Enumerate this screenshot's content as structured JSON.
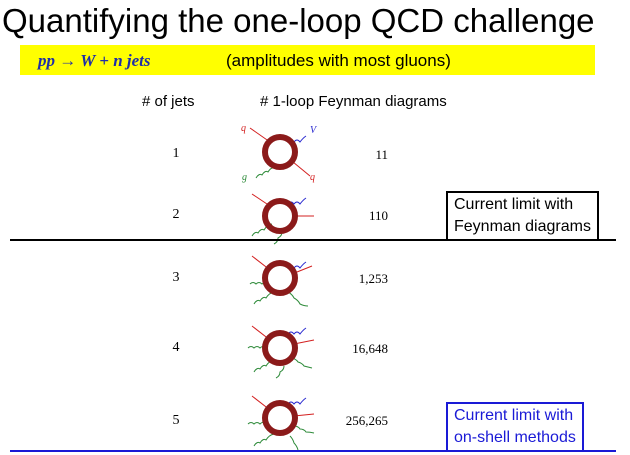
{
  "title": "Quantifying the one-loop QCD challenge",
  "banner": {
    "process_prefix": "pp",
    "process_arrow": "→",
    "process_suffix": "W + n jets",
    "note": "(amplitudes with most gluons)"
  },
  "headers": {
    "jets": "# of jets",
    "diagrams": "# 1-loop Feynman diagrams"
  },
  "rows": [
    {
      "jets": "1",
      "count": "11"
    },
    {
      "jets": "2",
      "count": "110"
    },
    {
      "jets": "3",
      "count": "1,253"
    },
    {
      "jets": "4",
      "count": "16,648"
    },
    {
      "jets": "5",
      "count": "256,265"
    }
  ],
  "diagram_labels": {
    "quark": "q",
    "vector": "V",
    "gluon": "g"
  },
  "limits": {
    "feynman": {
      "line1": "Current limit with",
      "line2": "Feynman diagrams",
      "color": "#000000"
    },
    "onshell": {
      "line1": "Current limit with",
      "line2": "on-shell methods",
      "color": "#1a1ad6"
    }
  },
  "colors": {
    "banner": "#ffff00",
    "loop": "#8b1a1a",
    "quark": "#d32020",
    "vector": "#2a2ad0",
    "gluon": "#2e8b3a"
  }
}
